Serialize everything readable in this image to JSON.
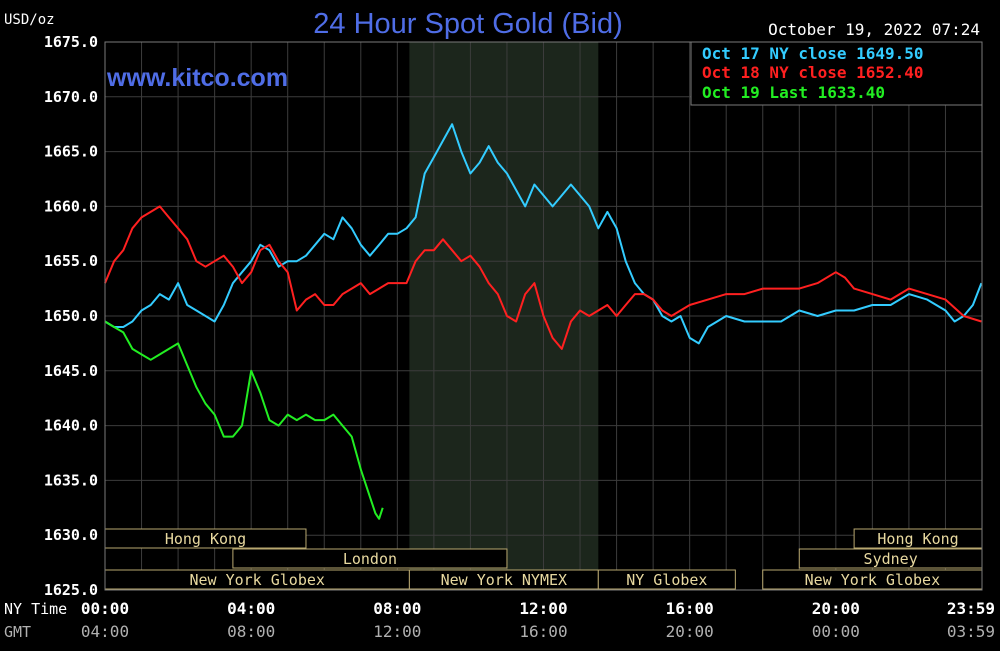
{
  "chart_data": {
    "type": "line",
    "title": "24 Hour Spot Gold (Bid)",
    "watermark": "www.kitco.com",
    "timestamp": "October 19, 2022 07:24",
    "ylabel": "USD/oz",
    "ylim": [
      1625.0,
      1675.0
    ],
    "xlim": [
      0,
      24
    ],
    "grid": true,
    "legend_position": "top-right",
    "y_ticks": [
      {
        "value": 1625.0,
        "label": "1625.0"
      },
      {
        "value": 1630.0,
        "label": "1630.0"
      },
      {
        "value": 1635.0,
        "label": "1635.0"
      },
      {
        "value": 1640.0,
        "label": "1640.0"
      },
      {
        "value": 1645.0,
        "label": "1645.0"
      },
      {
        "value": 1650.0,
        "label": "1650.0"
      },
      {
        "value": 1655.0,
        "label": "1655.0"
      },
      {
        "value": 1660.0,
        "label": "1660.0"
      },
      {
        "value": 1665.0,
        "label": "1665.0"
      },
      {
        "value": 1670.0,
        "label": "1670.0"
      },
      {
        "value": 1675.0,
        "label": "1675.0"
      }
    ],
    "x_axis_rows": [
      {
        "name": "NY Time",
        "color": "#ffffff",
        "ticks": [
          {
            "x": 0,
            "label": "00:00"
          },
          {
            "x": 4,
            "label": "04:00"
          },
          {
            "x": 8,
            "label": "08:00"
          },
          {
            "x": 12,
            "label": "12:00"
          },
          {
            "x": 16,
            "label": "16:00"
          },
          {
            "x": 20,
            "label": "20:00"
          },
          {
            "x": 23.983,
            "label": "23:59"
          }
        ]
      },
      {
        "name": "GMT",
        "color": "#b0b0b0",
        "ticks": [
          {
            "x": 0,
            "label": "04:00"
          },
          {
            "x": 4,
            "label": "08:00"
          },
          {
            "x": 8,
            "label": "12:00"
          },
          {
            "x": 12,
            "label": "16:00"
          },
          {
            "x": 16,
            "label": "20:00"
          },
          {
            "x": 20,
            "label": "00:00"
          },
          {
            "x": 23.983,
            "label": "03:59"
          }
        ]
      }
    ],
    "shaded_session": {
      "start": 8.33,
      "end": 13.5
    },
    "markets": [
      {
        "label": "Hong Kong",
        "start": 0,
        "end": 5.5,
        "row": 0
      },
      {
        "label": "Hong Kong",
        "start": 20.5,
        "end": 24,
        "row": 0
      },
      {
        "label": "London",
        "start": 3.5,
        "end": 11.0,
        "row": 1
      },
      {
        "label": "Sydney",
        "start": 19.0,
        "end": 24,
        "row": 1
      },
      {
        "label": "New York Globex",
        "start": 0,
        "end": 8.33,
        "row": 2
      },
      {
        "label": "New York NYMEX",
        "start": 8.33,
        "end": 13.5,
        "row": 2
      },
      {
        "label": "NY Globex",
        "start": 13.5,
        "end": 17.25,
        "row": 2
      },
      {
        "label": "New York Globex",
        "start": 18.0,
        "end": 24,
        "row": 2
      }
    ],
    "series": [
      {
        "name": "Oct 17 NY close 1649.50",
        "color": "#33ccff",
        "points": [
          [
            0,
            1649.5
          ],
          [
            0.25,
            1649
          ],
          [
            0.5,
            1649
          ],
          [
            0.75,
            1649.5
          ],
          [
            1,
            1650.5
          ],
          [
            1.25,
            1651
          ],
          [
            1.5,
            1652
          ],
          [
            1.75,
            1651.5
          ],
          [
            2,
            1653
          ],
          [
            2.25,
            1651
          ],
          [
            2.5,
            1650.5
          ],
          [
            2.75,
            1650
          ],
          [
            3,
            1649.5
          ],
          [
            3.25,
            1651
          ],
          [
            3.5,
            1653
          ],
          [
            3.75,
            1654
          ],
          [
            4,
            1655
          ],
          [
            4.25,
            1656.5
          ],
          [
            4.5,
            1656
          ],
          [
            4.75,
            1654.5
          ],
          [
            5,
            1655
          ],
          [
            5.25,
            1655
          ],
          [
            5.5,
            1655.5
          ],
          [
            5.75,
            1656.5
          ],
          [
            6,
            1657.5
          ],
          [
            6.25,
            1657
          ],
          [
            6.5,
            1659
          ],
          [
            6.75,
            1658
          ],
          [
            7,
            1656.5
          ],
          [
            7.25,
            1655.5
          ],
          [
            7.5,
            1656.5
          ],
          [
            7.75,
            1657.5
          ],
          [
            8,
            1657.5
          ],
          [
            8.25,
            1658
          ],
          [
            8.5,
            1659
          ],
          [
            8.75,
            1663
          ],
          [
            9,
            1664.5
          ],
          [
            9.25,
            1666
          ],
          [
            9.5,
            1667.5
          ],
          [
            9.75,
            1665
          ],
          [
            10,
            1663
          ],
          [
            10.25,
            1664
          ],
          [
            10.5,
            1665.5
          ],
          [
            10.75,
            1664
          ],
          [
            11,
            1663
          ],
          [
            11.25,
            1661.5
          ],
          [
            11.5,
            1660
          ],
          [
            11.75,
            1662
          ],
          [
            12,
            1661
          ],
          [
            12.25,
            1660
          ],
          [
            12.5,
            1661
          ],
          [
            12.75,
            1662
          ],
          [
            13,
            1661
          ],
          [
            13.25,
            1660
          ],
          [
            13.5,
            1658
          ],
          [
            13.75,
            1659.5
          ],
          [
            14,
            1658
          ],
          [
            14.25,
            1655
          ],
          [
            14.5,
            1653
          ],
          [
            14.75,
            1652
          ],
          [
            15,
            1651.5
          ],
          [
            15.25,
            1650
          ],
          [
            15.5,
            1649.5
          ],
          [
            15.75,
            1650
          ],
          [
            16,
            1648
          ],
          [
            16.25,
            1647.5
          ],
          [
            16.5,
            1649
          ],
          [
            16.75,
            1649.5
          ],
          [
            17,
            1650
          ],
          [
            17.5,
            1649.5
          ],
          [
            18,
            1649.5
          ],
          [
            18.5,
            1649.5
          ],
          [
            19,
            1650.5
          ],
          [
            19.5,
            1650
          ],
          [
            20,
            1650.5
          ],
          [
            20.5,
            1650.5
          ],
          [
            21,
            1651
          ],
          [
            21.5,
            1651
          ],
          [
            22,
            1652
          ],
          [
            22.5,
            1651.5
          ],
          [
            23,
            1650.5
          ],
          [
            23.25,
            1649.5
          ],
          [
            23.5,
            1650
          ],
          [
            23.75,
            1651
          ],
          [
            23.983,
            1653
          ]
        ]
      },
      {
        "name": "Oct 18 NY close 1652.40",
        "color": "#ff2020",
        "points": [
          [
            0,
            1653
          ],
          [
            0.25,
            1655
          ],
          [
            0.5,
            1656
          ],
          [
            0.75,
            1658
          ],
          [
            1,
            1659
          ],
          [
            1.25,
            1659.5
          ],
          [
            1.5,
            1660
          ],
          [
            1.75,
            1659
          ],
          [
            2,
            1658
          ],
          [
            2.25,
            1657
          ],
          [
            2.5,
            1655
          ],
          [
            2.75,
            1654.5
          ],
          [
            3,
            1655
          ],
          [
            3.25,
            1655.5
          ],
          [
            3.5,
            1654.5
          ],
          [
            3.75,
            1653
          ],
          [
            4,
            1654
          ],
          [
            4.25,
            1656
          ],
          [
            4.5,
            1656.5
          ],
          [
            4.75,
            1655
          ],
          [
            5,
            1654
          ],
          [
            5.25,
            1650.5
          ],
          [
            5.5,
            1651.5
          ],
          [
            5.75,
            1652
          ],
          [
            6,
            1651
          ],
          [
            6.25,
            1651
          ],
          [
            6.5,
            1652
          ],
          [
            6.75,
            1652.5
          ],
          [
            7,
            1653
          ],
          [
            7.25,
            1652
          ],
          [
            7.5,
            1652.5
          ],
          [
            7.75,
            1653
          ],
          [
            8,
            1653
          ],
          [
            8.25,
            1653
          ],
          [
            8.5,
            1655
          ],
          [
            8.75,
            1656
          ],
          [
            9,
            1656
          ],
          [
            9.25,
            1657
          ],
          [
            9.5,
            1656
          ],
          [
            9.75,
            1655
          ],
          [
            10,
            1655.5
          ],
          [
            10.25,
            1654.5
          ],
          [
            10.5,
            1653
          ],
          [
            10.75,
            1652
          ],
          [
            11,
            1650
          ],
          [
            11.25,
            1649.5
          ],
          [
            11.5,
            1652
          ],
          [
            11.75,
            1653
          ],
          [
            12,
            1650
          ],
          [
            12.25,
            1648
          ],
          [
            12.5,
            1647
          ],
          [
            12.75,
            1649.5
          ],
          [
            13,
            1650.5
          ],
          [
            13.25,
            1650
          ],
          [
            13.5,
            1650.5
          ],
          [
            13.75,
            1651
          ],
          [
            14,
            1650
          ],
          [
            14.25,
            1651
          ],
          [
            14.5,
            1652
          ],
          [
            14.75,
            1652
          ],
          [
            15,
            1651.5
          ],
          [
            15.25,
            1650.5
          ],
          [
            15.5,
            1650
          ],
          [
            15.75,
            1650.5
          ],
          [
            16,
            1651
          ],
          [
            16.5,
            1651.5
          ],
          [
            17,
            1652
          ],
          [
            17.5,
            1652
          ],
          [
            18,
            1652.5
          ],
          [
            18.5,
            1652.5
          ],
          [
            19,
            1652.5
          ],
          [
            19.5,
            1653
          ],
          [
            20,
            1654
          ],
          [
            20.25,
            1653.5
          ],
          [
            20.5,
            1652.5
          ],
          [
            21,
            1652
          ],
          [
            21.5,
            1651.5
          ],
          [
            22,
            1652.5
          ],
          [
            22.5,
            1652
          ],
          [
            23,
            1651.5
          ],
          [
            23.5,
            1650
          ],
          [
            23.983,
            1649.5
          ]
        ]
      },
      {
        "name": "Oct 19 Last 1633.40",
        "color": "#22ee22",
        "points": [
          [
            0,
            1649.5
          ],
          [
            0.25,
            1649
          ],
          [
            0.5,
            1648.5
          ],
          [
            0.75,
            1647
          ],
          [
            1,
            1646.5
          ],
          [
            1.25,
            1646
          ],
          [
            1.5,
            1646.5
          ],
          [
            1.75,
            1647
          ],
          [
            2,
            1647.5
          ],
          [
            2.25,
            1645.5
          ],
          [
            2.5,
            1643.5
          ],
          [
            2.75,
            1642
          ],
          [
            3,
            1641
          ],
          [
            3.25,
            1639
          ],
          [
            3.5,
            1639
          ],
          [
            3.75,
            1640
          ],
          [
            4,
            1645
          ],
          [
            4.25,
            1643
          ],
          [
            4.5,
            1640.5
          ],
          [
            4.75,
            1640
          ],
          [
            5,
            1641
          ],
          [
            5.25,
            1640.5
          ],
          [
            5.5,
            1641
          ],
          [
            5.75,
            1640.5
          ],
          [
            6,
            1640.5
          ],
          [
            6.25,
            1641
          ],
          [
            6.5,
            1640
          ],
          [
            6.75,
            1639
          ],
          [
            7,
            1636
          ],
          [
            7.25,
            1633.5
          ],
          [
            7.4,
            1632
          ],
          [
            7.5,
            1631.5
          ],
          [
            7.6,
            1632.5
          ]
        ]
      }
    ]
  }
}
